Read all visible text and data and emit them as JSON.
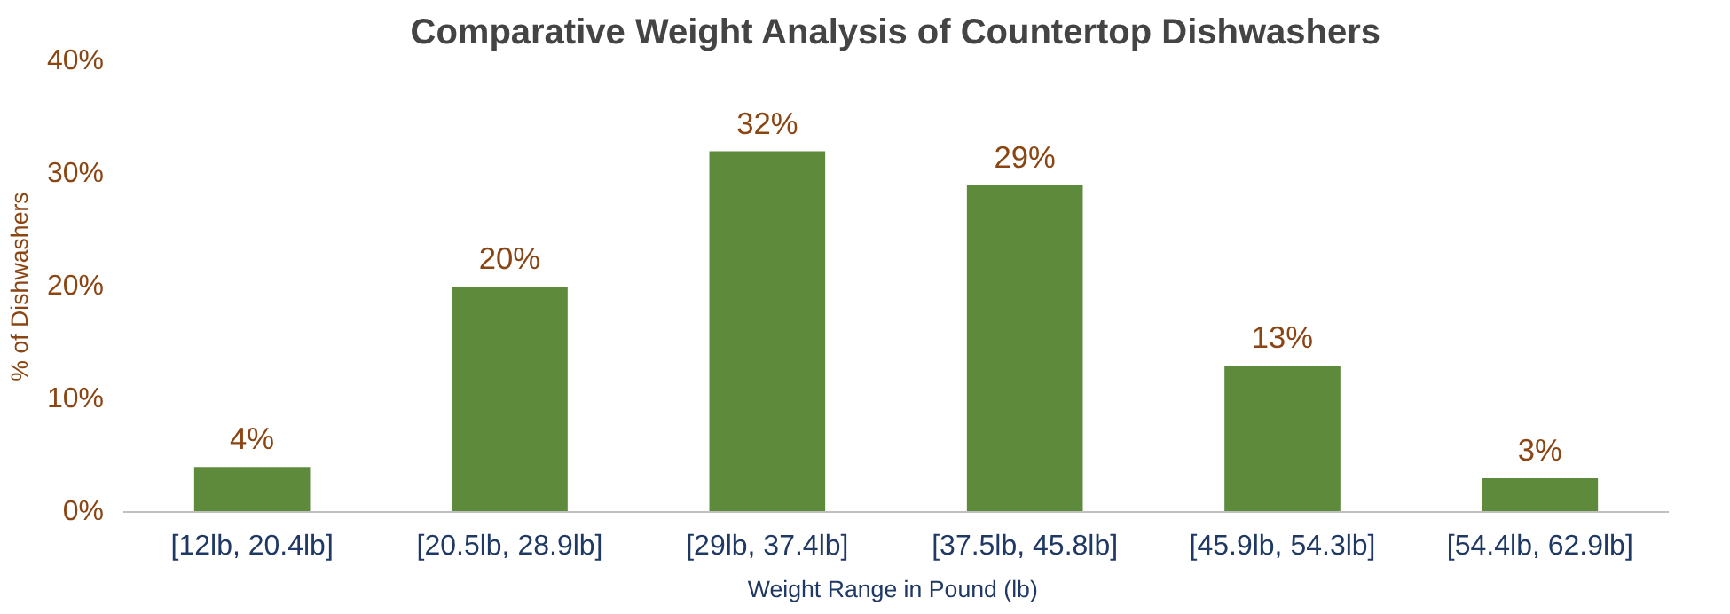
{
  "chart_data": {
    "type": "bar",
    "title": "Comparative Weight Analysis of Countertop Dishwashers",
    "xlabel": "Weight Range in Pound  (lb)",
    "ylabel": "% of Dishwashers",
    "categories": [
      "[12lb, 20.4lb]",
      "[20.5lb, 28.9lb]",
      "[29lb, 37.4lb]",
      "[37.5lb, 45.8lb]",
      "[45.9lb, 54.3lb]",
      "[54.4lb, 62.9lb]"
    ],
    "values": [
      4,
      20,
      32,
      29,
      13,
      3
    ],
    "value_labels": [
      "4%",
      "20%",
      "32%",
      "29%",
      "13%",
      "3%"
    ],
    "color": "#5e8a3c",
    "ylim": [
      0,
      40
    ],
    "yticks": [
      {
        "value": 0,
        "label": "0%"
      },
      {
        "value": 10,
        "label": "10%"
      },
      {
        "value": 20,
        "label": "20%"
      },
      {
        "value": 30,
        "label": "30%"
      },
      {
        "value": 40,
        "label": "40%"
      }
    ],
    "grid": false
  }
}
